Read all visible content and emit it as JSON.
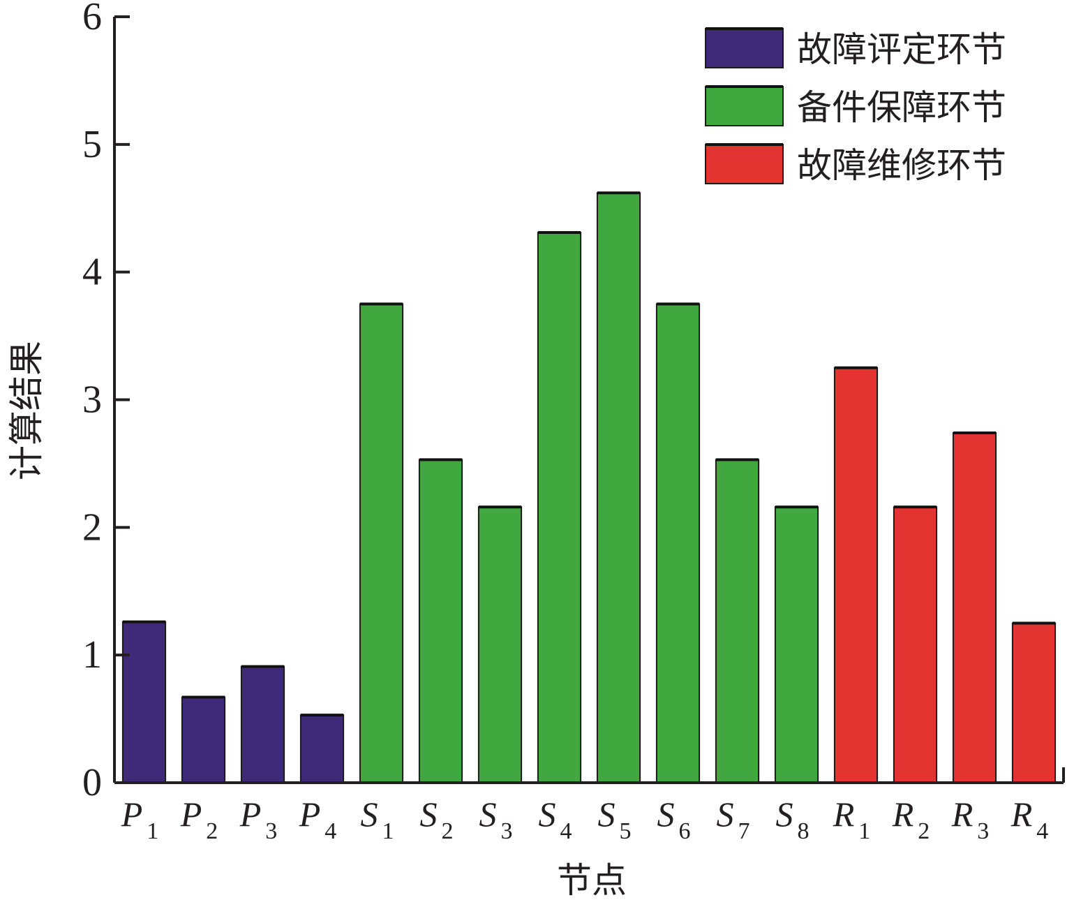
{
  "chart_data": {
    "type": "bar",
    "title": "",
    "xlabel": "节点",
    "ylabel": "计算结果",
    "ylim": [
      0,
      6
    ],
    "yticks": [
      0,
      1,
      2,
      3,
      4,
      5,
      6
    ],
    "categories": [
      {
        "main": "P",
        "sub": "1"
      },
      {
        "main": "P",
        "sub": "2"
      },
      {
        "main": "P",
        "sub": "3"
      },
      {
        "main": "P",
        "sub": "4"
      },
      {
        "main": "S",
        "sub": "1"
      },
      {
        "main": "S",
        "sub": "2"
      },
      {
        "main": "S",
        "sub": "3"
      },
      {
        "main": "S",
        "sub": "4"
      },
      {
        "main": "S",
        "sub": "5"
      },
      {
        "main": "S",
        "sub": "6"
      },
      {
        "main": "S",
        "sub": "7"
      },
      {
        "main": "S",
        "sub": "8"
      },
      {
        "main": "R",
        "sub": "1"
      },
      {
        "main": "R",
        "sub": "2"
      },
      {
        "main": "R",
        "sub": "3"
      },
      {
        "main": "R",
        "sub": "4"
      }
    ],
    "values": [
      1.26,
      0.67,
      0.91,
      0.53,
      3.75,
      2.53,
      2.16,
      4.31,
      4.62,
      3.75,
      2.53,
      2.16,
      3.25,
      2.16,
      2.74,
      1.25
    ],
    "groups": [
      0,
      0,
      0,
      0,
      1,
      1,
      1,
      1,
      1,
      1,
      1,
      1,
      2,
      2,
      2,
      2
    ],
    "series": [
      {
        "name": "故障评定环节",
        "color": "#3f2a7a"
      },
      {
        "name": "备件保障环节",
        "color": "#41a83f"
      },
      {
        "name": "故障维修环节",
        "color": "#e33431"
      }
    ],
    "legend_position": "top-right",
    "grid": false
  }
}
